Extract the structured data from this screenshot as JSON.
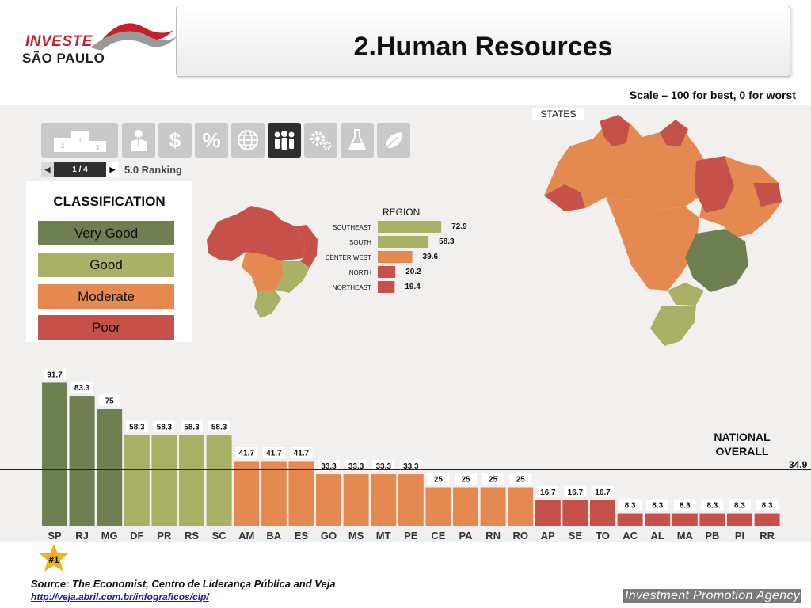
{
  "header": {
    "logo_line1": "INVESTE",
    "logo_line2": "SÃO PAULO",
    "title": "2.Human Resources",
    "scale_note": "Scale – 100 for best, 0 for worst"
  },
  "toolbar": {
    "icons": [
      "podium-icon",
      "person-icon",
      "dollar-icon",
      "percent-icon",
      "globe-icon",
      "people-icon",
      "gears-icon",
      "flask-icon",
      "leaf-icon"
    ],
    "active_index": 5,
    "pager_label": "1 / 4",
    "ranking_label": "5.0 Ranking"
  },
  "classification": {
    "heading": "CLASSIFICATION",
    "items": [
      {
        "label": "Very Good",
        "color": "#6e7f52"
      },
      {
        "label": "Good",
        "color": "#a9b166"
      },
      {
        "label": "Moderate",
        "color": "#e48a50"
      },
      {
        "label": "Poor",
        "color": "#c5514a"
      }
    ]
  },
  "maps": {
    "region_title": "REGION",
    "states_title": "STATES"
  },
  "national": {
    "label_line1": "NATIONAL",
    "label_line2": "OVERALL",
    "value": "34.9"
  },
  "footer": {
    "rank_badge": "#1",
    "source": "Source: The Economist, Centro de Liderança Pública and Veja",
    "link": "http://veja.abril.com.br/infograficos/clp/",
    "agency": "Investment Promotion Agency"
  },
  "chart_data": [
    {
      "type": "bar",
      "orientation": "horizontal",
      "title": "REGION",
      "categories": [
        "SOUTHEAST",
        "SOUTH",
        "CENTER WEST",
        "NORTH",
        "NORTHEAST"
      ],
      "values": [
        72.9,
        58.3,
        39.6,
        20.2,
        19.4
      ],
      "classes": [
        "Good",
        "Good",
        "Moderate",
        "Poor",
        "Poor"
      ]
    },
    {
      "type": "bar",
      "title": "STATES",
      "categories": [
        "SP",
        "RJ",
        "MG",
        "DF",
        "PR",
        "RS",
        "SC",
        "AM",
        "BA",
        "ES",
        "GO",
        "MS",
        "MT",
        "PE",
        "CE",
        "PA",
        "RN",
        "RO",
        "AP",
        "SE",
        "TO",
        "AC",
        "AL",
        "MA",
        "PB",
        "PI",
        "RR"
      ],
      "values": [
        91.7,
        83.3,
        75,
        58.3,
        58.3,
        58.3,
        58.3,
        41.7,
        41.7,
        41.7,
        33.3,
        33.3,
        33.3,
        33.3,
        25,
        25,
        25,
        25,
        16.7,
        16.7,
        16.7,
        8.3,
        8.3,
        8.3,
        8.3,
        8.3,
        8.3
      ],
      "classes": [
        "Very Good",
        "Very Good",
        "Very Good",
        "Good",
        "Good",
        "Good",
        "Good",
        "Moderate",
        "Moderate",
        "Moderate",
        "Moderate",
        "Moderate",
        "Moderate",
        "Moderate",
        "Moderate",
        "Moderate",
        "Moderate",
        "Moderate",
        "Poor",
        "Poor",
        "Poor",
        "Poor",
        "Poor",
        "Poor",
        "Poor",
        "Poor",
        "Poor"
      ],
      "reference_line": {
        "label": "NATIONAL OVERALL",
        "value": 34.9
      },
      "ylim": [
        0,
        100
      ]
    }
  ]
}
